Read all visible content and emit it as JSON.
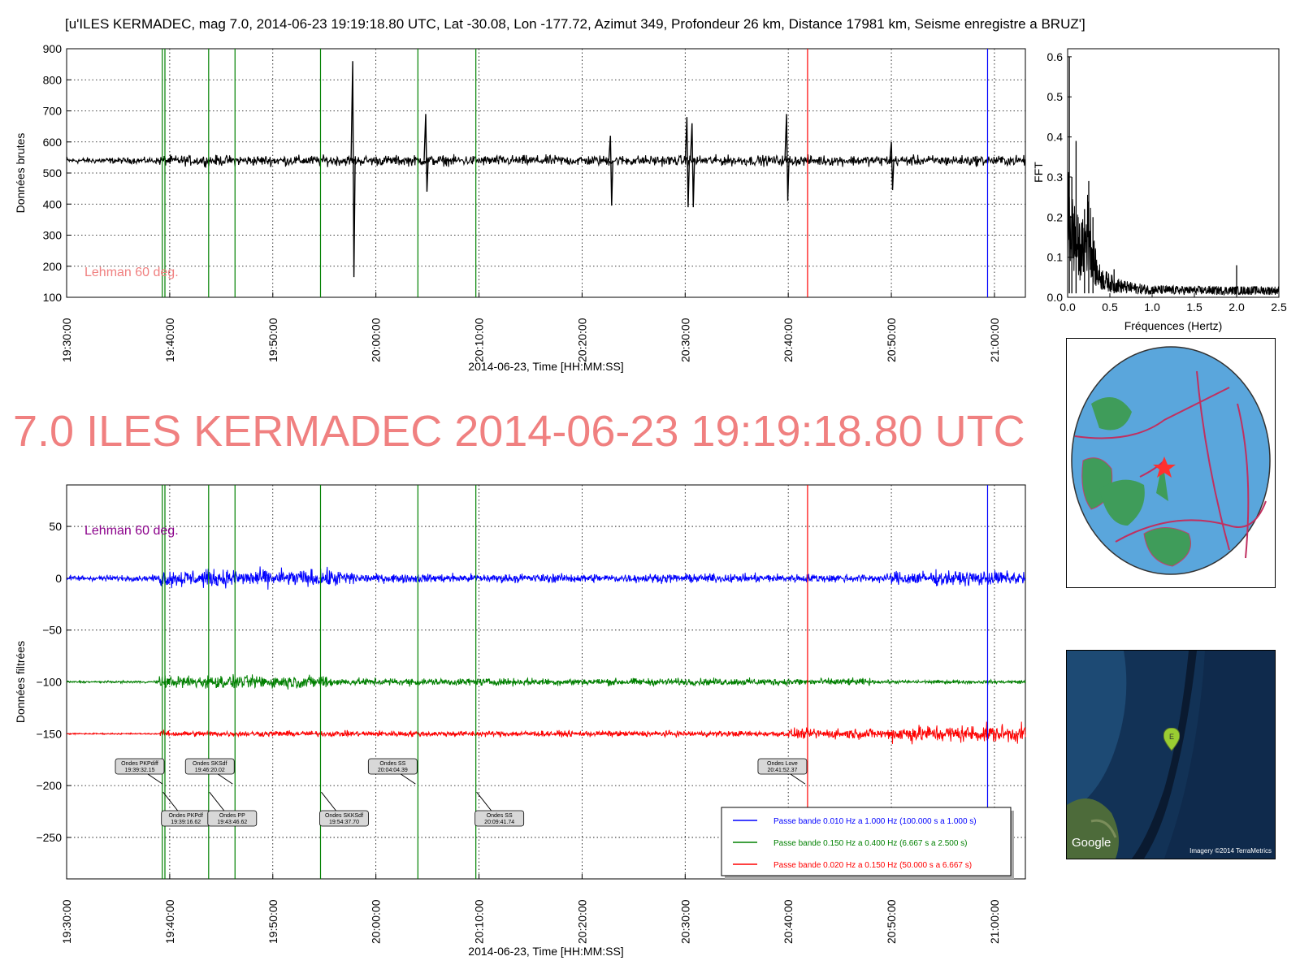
{
  "page": {
    "header_title": "[u'ILES KERMADEC, mag 7.0, 2014-06-23 19:19:18.80 UTC, Lat -30.08, Lon -177.72, Azimut 349, Profondeur 26 km, Distance 17981 km, Seisme enregistre a BRUZ']",
    "big_title": "7.0 ILES KERMADEC 2014-06-23 19:19:18.80 UTC"
  },
  "colors": {
    "raw_trace": "#000000",
    "blue_trace": "#0000ff",
    "green_trace": "#008000",
    "red_trace": "#ff0000",
    "phase_line": "#008000",
    "lehman_line": "#ff0000",
    "end_line": "#0000ff",
    "title_pink": "#f08080",
    "lehman_text_top": "#f08080",
    "lehman_text_bottom": "#8b008b"
  },
  "chart_data": [
    {
      "type": "line",
      "name": "raw",
      "ylabel": "Données brutes",
      "xlabel": "2014-06-23, Time [HH:MM:SS]",
      "x_ticks": [
        "19:30:00",
        "19:40:00",
        "19:50:00",
        "20:00:00",
        "20:10:00",
        "20:20:00",
        "20:30:00",
        "20:40:00",
        "20:50:00",
        "21:00:00"
      ],
      "xlim": [
        "19:30:00",
        "21:03:00"
      ],
      "ylim": [
        100,
        900
      ],
      "y_ticks": [
        100,
        200,
        300,
        400,
        500,
        600,
        700,
        800,
        900
      ],
      "baseline": 540,
      "grid": true,
      "annotation": "Lehman 60 deg.",
      "spikes": [
        {
          "t": "19:57:45",
          "high": 860,
          "low": 165
        },
        {
          "t": "20:04:50",
          "high": 690,
          "low": 440
        },
        {
          "t": "20:22:45",
          "high": 620,
          "low": 395
        },
        {
          "t": "20:30:10",
          "high": 680,
          "low": 390
        },
        {
          "t": "20:30:40",
          "high": 660,
          "low": 390
        },
        {
          "t": "20:39:50",
          "high": 690,
          "low": 410
        },
        {
          "t": "20:50:00",
          "high": 600,
          "low": 445
        }
      ],
      "vlines": [
        {
          "t": "19:39:16.62",
          "kind": "phase"
        },
        {
          "t": "19:39:32.15",
          "kind": "phase"
        },
        {
          "t": "19:43:46.62",
          "kind": "phase"
        },
        {
          "t": "19:46:20.02",
          "kind": "phase"
        },
        {
          "t": "19:54:37.70",
          "kind": "phase"
        },
        {
          "t": "20:04:04.39",
          "kind": "phase"
        },
        {
          "t": "20:09:41.74",
          "kind": "phase"
        },
        {
          "t": "20:41:52.37",
          "kind": "lehman"
        },
        {
          "t": "20:59:20",
          "kind": "end"
        }
      ]
    },
    {
      "type": "line",
      "name": "fft",
      "ylabel": "FFT",
      "xlabel": "Fréquences (Hertz)",
      "xlim": [
        0,
        2.5
      ],
      "ylim": [
        0,
        0.62
      ],
      "x_ticks": [
        "0.0",
        "0.5",
        "1.0",
        "1.5",
        "2.0",
        "2.5"
      ],
      "y_ticks": [
        "0.0",
        "0.1",
        "0.2",
        "0.3",
        "0.4",
        "0.5",
        "0.6"
      ],
      "peaks": [
        {
          "x": 0.02,
          "y": 0.6
        },
        {
          "x": 0.05,
          "y": 0.3
        },
        {
          "x": 0.1,
          "y": 0.39
        },
        {
          "x": 0.2,
          "y": 0.22
        },
        {
          "x": 0.25,
          "y": 0.29
        },
        {
          "x": 0.3,
          "y": 0.2
        },
        {
          "x": 0.55,
          "y": 0.07
        },
        {
          "x": 2.0,
          "y": 0.08
        }
      ]
    },
    {
      "type": "line",
      "name": "filtered",
      "ylabel": "Données filtrées",
      "xlabel": "2014-06-23, Time [HH:MM:SS]",
      "x_ticks": [
        "19:30:00",
        "19:40:00",
        "19:50:00",
        "20:00:00",
        "20:10:00",
        "20:20:00",
        "20:30:00",
        "20:40:00",
        "20:50:00",
        "21:00:00"
      ],
      "xlim": [
        "19:30:00",
        "21:03:00"
      ],
      "ylim": [
        -290,
        90
      ],
      "y_ticks": [
        50,
        0,
        -50,
        -100,
        -150,
        -200,
        -250
      ],
      "grid": true,
      "annotation": "Lehman 60 deg.",
      "series": [
        {
          "name": "Passe bande 0.010 Hz a 1.000 Hz (100.000 s a 1.000 s)",
          "offset": 0,
          "color": "#0000ff"
        },
        {
          "name": "Passe bande 0.150 Hz a 0.400 Hz (6.667 s a 2.500 s)",
          "offset": -100,
          "color": "#008000"
        },
        {
          "name": "Passe bande 0.020 Hz a 0.150 Hz (50.000 s a 6.667 s)",
          "offset": -150,
          "color": "#ff0000"
        }
      ],
      "phase_labels": [
        {
          "label": "Ondes PKPdiff\n19:39:32.15",
          "t": "19:39:32.15",
          "pos": "above"
        },
        {
          "label": "Ondes PKPdf\n19:39:16.62",
          "t": "19:39:16.62",
          "pos": "below"
        },
        {
          "label": "Ondes SKSdf\n19:46:20.02",
          "t": "19:46:20.02",
          "pos": "above"
        },
        {
          "label": "Ondes PP\n19:43:46.62",
          "t": "19:43:46.62",
          "pos": "below"
        },
        {
          "label": "Ondes SKKSdf\n19:54:37.70",
          "t": "19:54:37.70",
          "pos": "below"
        },
        {
          "label": "Ondes SS\n20:04:04.39",
          "t": "20:04:04.39",
          "pos": "above"
        },
        {
          "label": "Ondes SS\n20:09:41.74",
          "t": "20:09:41.74",
          "pos": "below"
        },
        {
          "label": "Ondes Love\n20:41:52.37",
          "t": "20:41:52.37",
          "pos": "above"
        }
      ]
    }
  ],
  "maps": {
    "satellite_logo": "Google",
    "satellite_credit": "Imagery ©2014 TerraMetrics",
    "satellite_marker": "E"
  }
}
